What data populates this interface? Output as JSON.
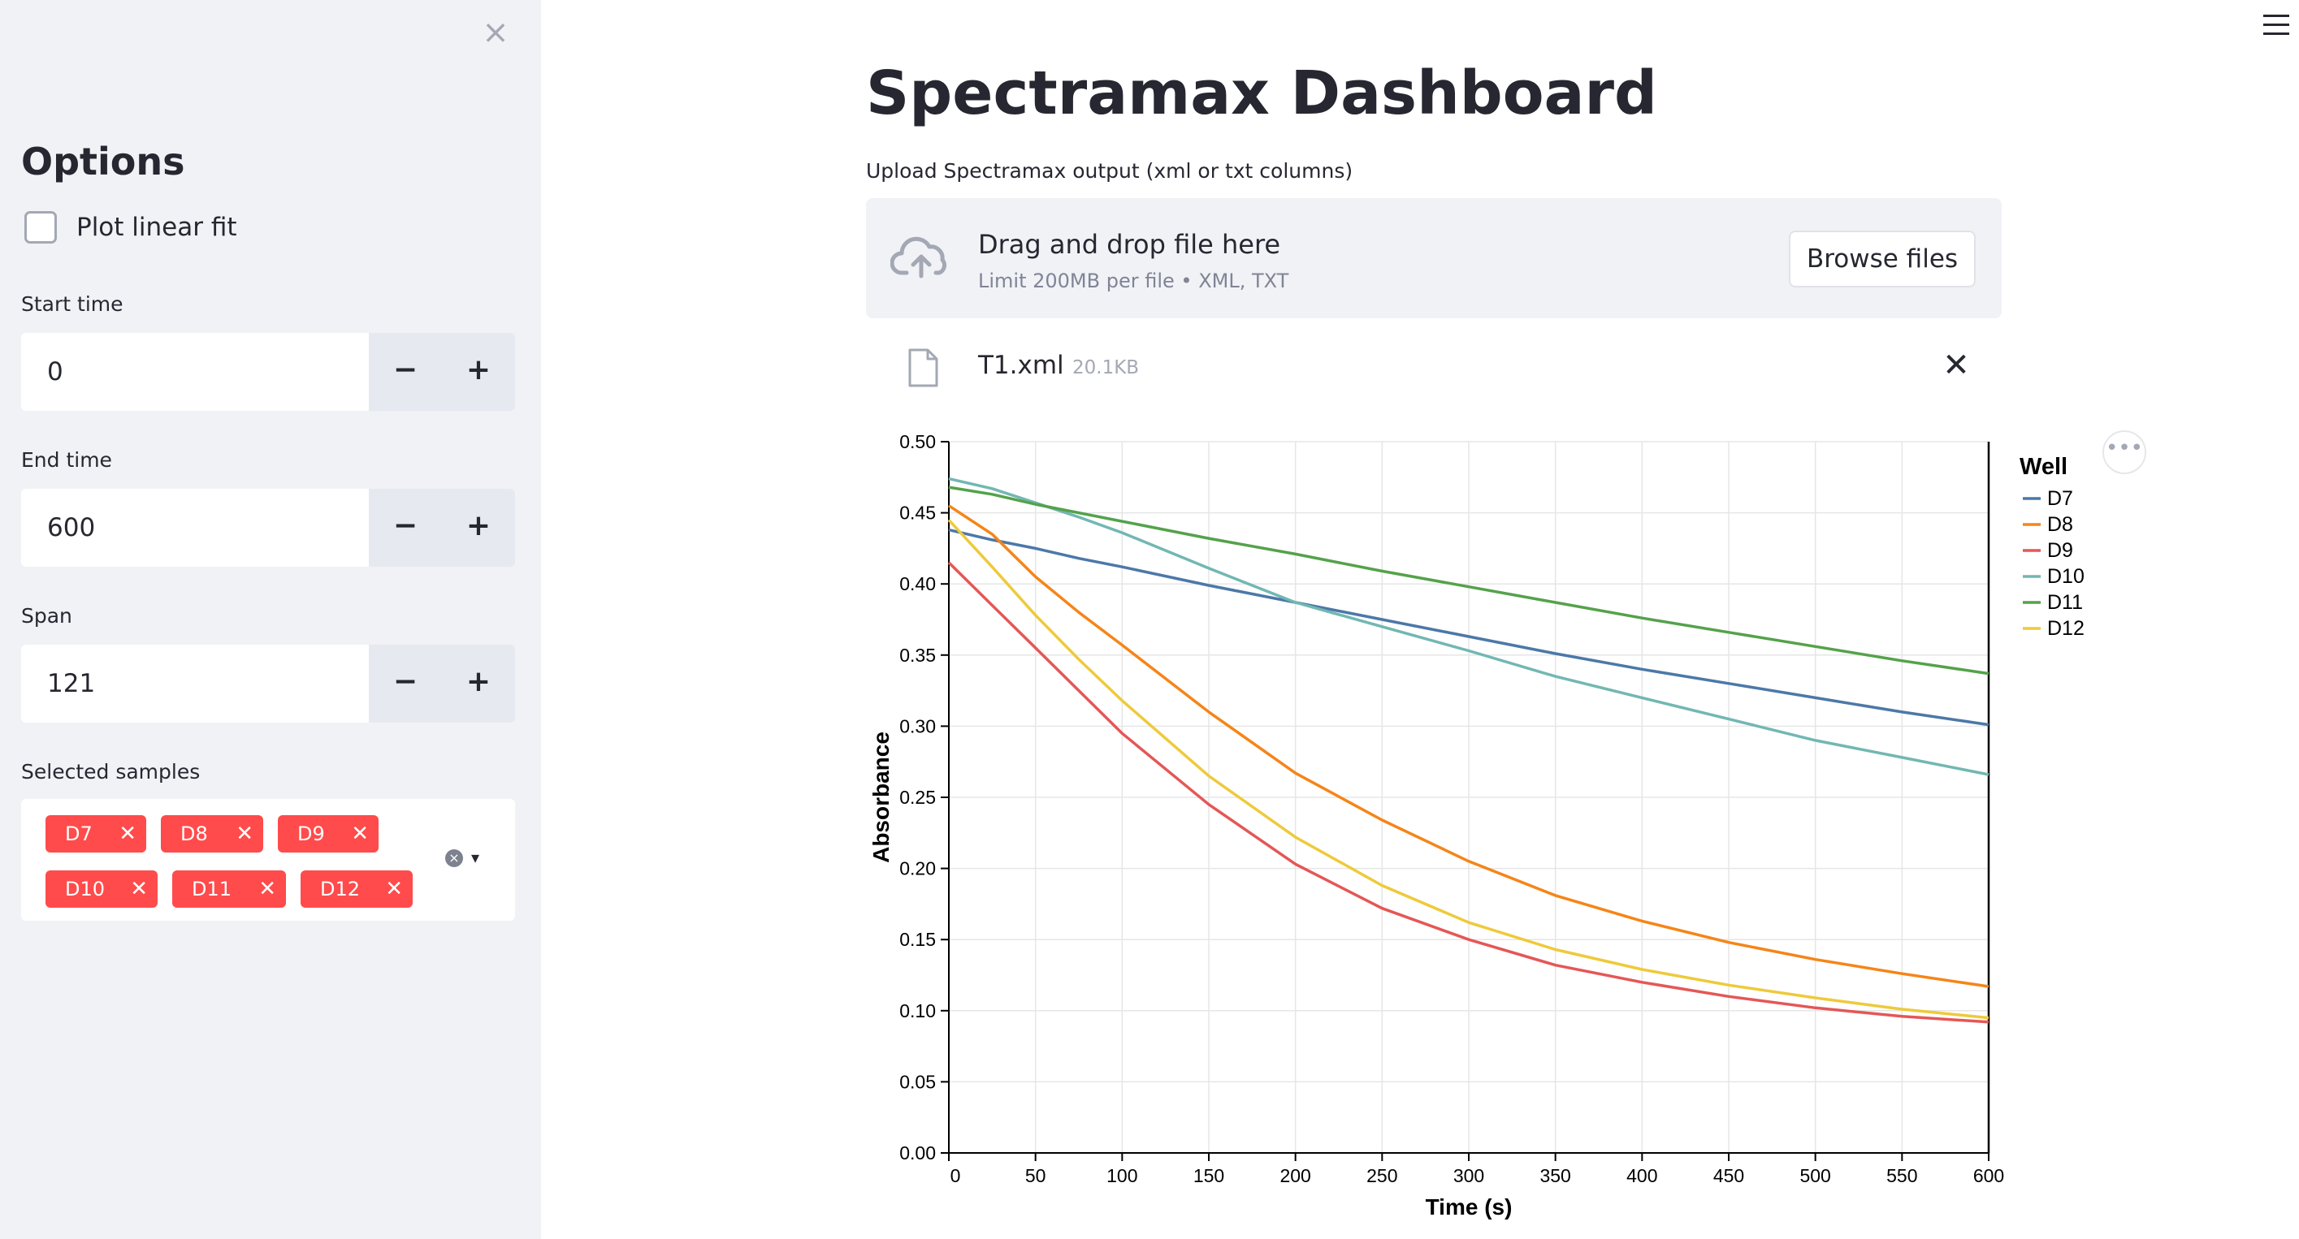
{
  "sidebar": {
    "close_glyph": "×",
    "title": "Options",
    "linear_fit": {
      "label": "Plot linear fit",
      "checked": false
    },
    "start_time": {
      "label": "Start time",
      "value": "0"
    },
    "end_time": {
      "label": "End time",
      "value": "600"
    },
    "span": {
      "label": "Span",
      "value": "121"
    },
    "stepper_minus": "−",
    "stepper_plus": "+",
    "selected_samples": {
      "label": "Selected samples",
      "tags": [
        "D7",
        "D8",
        "D9",
        "D10",
        "D11",
        "D12"
      ],
      "remove_glyph": "✕",
      "clear_glyph": "×",
      "chevron_glyph": "▾"
    }
  },
  "main": {
    "title": "Spectramax Dashboard",
    "uploader": {
      "label": "Upload Spectramax output (xml or txt columns)",
      "drop_title": "Drag and drop file here",
      "drop_subtitle": "Limit 200MB per file • XML, TXT",
      "browse_label": "Browse files",
      "file_name": "T1.xml",
      "file_size": "20.1KB",
      "remove_glyph": "✕"
    },
    "menu_icon": "hamburger-icon",
    "chart_menu_glyph": "•••"
  },
  "colors": {
    "accent": "#ff4b4b",
    "sidebar_bg": "#f0f2f6",
    "D7": "#4c78a8",
    "D8": "#f58518",
    "D9": "#e45756",
    "D10": "#72b7b2",
    "D11": "#54a24b",
    "D12": "#eeca3b"
  },
  "chart_data": {
    "type": "line",
    "xlabel": "Time (s)",
    "ylabel": "Absorbance",
    "xlim": [
      0,
      600
    ],
    "ylim": [
      0,
      0.5
    ],
    "x_ticks": [
      0,
      50,
      100,
      150,
      200,
      250,
      300,
      350,
      400,
      450,
      500,
      550,
      600
    ],
    "y_ticks": [
      "0.00",
      "0.05",
      "0.10",
      "0.15",
      "0.20",
      "0.25",
      "0.30",
      "0.35",
      "0.40",
      "0.45",
      "0.50"
    ],
    "grid": true,
    "legend_title": "Well",
    "legend_position": "right",
    "x": [
      0,
      25,
      50,
      75,
      100,
      150,
      200,
      250,
      300,
      350,
      400,
      450,
      500,
      550,
      600
    ],
    "series": [
      {
        "name": "D7",
        "values": [
          0.438,
          0.431,
          0.425,
          0.418,
          0.412,
          0.399,
          0.387,
          0.375,
          0.363,
          0.351,
          0.34,
          0.33,
          0.32,
          0.31,
          0.301
        ]
      },
      {
        "name": "D8",
        "values": [
          0.455,
          0.435,
          0.405,
          0.38,
          0.357,
          0.31,
          0.267,
          0.234,
          0.205,
          0.181,
          0.163,
          0.148,
          0.136,
          0.126,
          0.117
        ]
      },
      {
        "name": "D9",
        "values": [
          0.415,
          0.385,
          0.355,
          0.325,
          0.295,
          0.245,
          0.203,
          0.172,
          0.15,
          0.132,
          0.12,
          0.11,
          0.102,
          0.096,
          0.092
        ]
      },
      {
        "name": "D10",
        "values": [
          0.474,
          0.467,
          0.457,
          0.447,
          0.436,
          0.411,
          0.387,
          0.37,
          0.353,
          0.335,
          0.32,
          0.305,
          0.29,
          0.278,
          0.266
        ]
      },
      {
        "name": "D11",
        "values": [
          0.468,
          0.463,
          0.456,
          0.45,
          0.444,
          0.432,
          0.421,
          0.409,
          0.398,
          0.387,
          0.376,
          0.366,
          0.356,
          0.346,
          0.337
        ]
      },
      {
        "name": "D12",
        "values": [
          0.445,
          0.412,
          0.378,
          0.347,
          0.318,
          0.265,
          0.222,
          0.188,
          0.162,
          0.143,
          0.129,
          0.118,
          0.109,
          0.101,
          0.095
        ]
      }
    ]
  }
}
